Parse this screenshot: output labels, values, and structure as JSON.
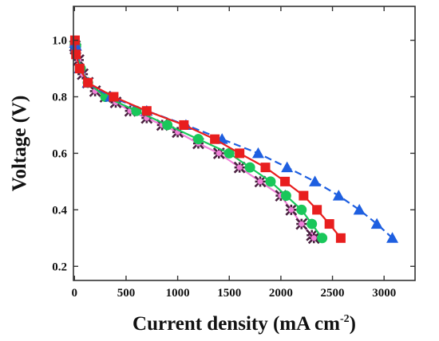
{
  "chart_data": {
    "type": "line",
    "title": "",
    "xlabel": "Current density (mA cm",
    "xlabel_sup": "-2",
    "xlabel_close": ")",
    "ylabel": "Voltage (V)",
    "xlim": [
      -10,
      3300
    ],
    "ylim": [
      0.15,
      1.12
    ],
    "x_ticks": [
      0,
      500,
      1000,
      1500,
      2000,
      2500,
      3000
    ],
    "y_ticks": [
      0.2,
      0.4,
      0.6,
      0.8,
      1.0
    ],
    "y_tick_labels": [
      "0.2",
      "0.4",
      "0.6",
      "0.8",
      "1.0"
    ],
    "grid": false,
    "legend": "none",
    "series": [
      {
        "color": "#f07fd8",
        "marker": "star-cross",
        "x": [
          5,
          10,
          40,
          80,
          130,
          200,
          300,
          400,
          540,
          700,
          850,
          1000,
          1200,
          1400,
          1600,
          1800,
          2000,
          2100,
          2200,
          2300,
          2320
        ],
        "y": [
          0.98,
          0.97,
          0.93,
          0.88,
          0.85,
          0.82,
          0.8,
          0.78,
          0.75,
          0.725,
          0.7,
          0.675,
          0.635,
          0.6,
          0.55,
          0.5,
          0.45,
          0.4,
          0.35,
          0.31,
          0.3
        ]
      },
      {
        "color": "#19c75a",
        "marker": "circle",
        "x": [
          5,
          15,
          60,
          130,
          300,
          600,
          900,
          1200,
          1500,
          1700,
          1900,
          2050,
          2200,
          2300,
          2400
        ],
        "y": [
          0.99,
          0.98,
          0.9,
          0.85,
          0.8,
          0.75,
          0.7,
          0.65,
          0.6,
          0.55,
          0.5,
          0.45,
          0.4,
          0.35,
          0.3
        ]
      },
      {
        "color": "#1e5fe0",
        "marker": "triangle",
        "x": [
          5,
          15,
          50,
          130,
          350,
          700,
          1080,
          1430,
          1780,
          2060,
          2330,
          2560,
          2760,
          2930,
          3080
        ],
        "y": [
          0.99,
          0.98,
          0.9,
          0.85,
          0.8,
          0.75,
          0.7,
          0.65,
          0.6,
          0.55,
          0.5,
          0.45,
          0.4,
          0.35,
          0.3
        ]
      },
      {
        "color": "#e81e1e",
        "marker": "square",
        "x": [
          5,
          15,
          50,
          130,
          380,
          700,
          1060,
          1360,
          1600,
          1850,
          2040,
          2220,
          2350,
          2470,
          2580
        ],
        "y": [
          1.0,
          0.95,
          0.9,
          0.85,
          0.8,
          0.75,
          0.7,
          0.65,
          0.6,
          0.55,
          0.5,
          0.45,
          0.4,
          0.35,
          0.3
        ]
      }
    ]
  }
}
